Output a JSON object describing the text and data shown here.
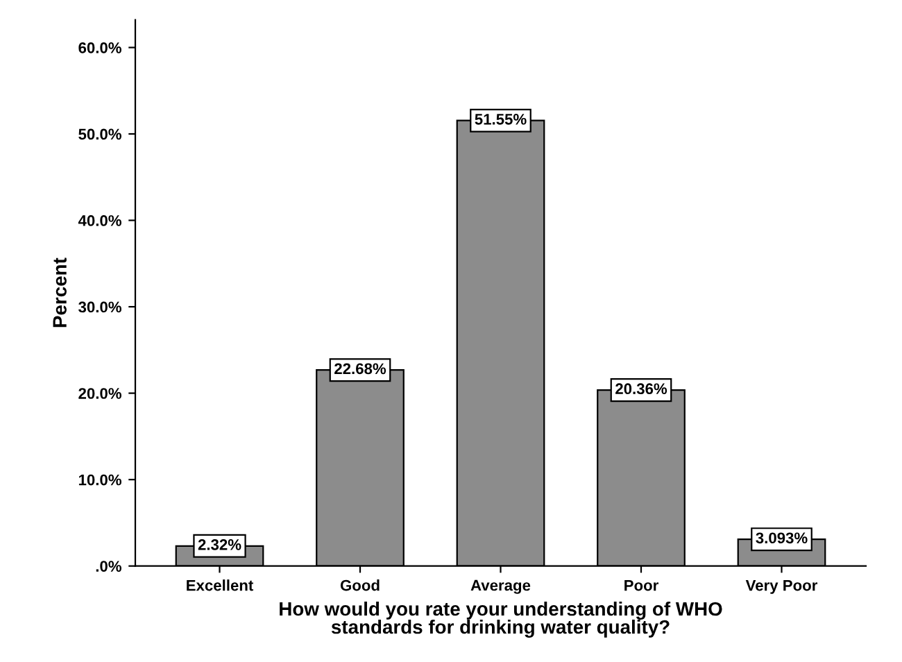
{
  "chart_data": {
    "type": "bar",
    "xlabel": "How would you rate your understanding of WHO\nstandards for drinking water quality?",
    "ylabel": "Percent",
    "categories": [
      "Excellent",
      "Good",
      "Average",
      "Poor",
      "Very Poor"
    ],
    "values": [
      2.32,
      22.68,
      51.55,
      20.36,
      3.093
    ],
    "value_labels": [
      "2.32%",
      "22.68%",
      "51.55%",
      "20.36%",
      "3.093%"
    ],
    "color": "#8c8c8c",
    "ylim": [
      0,
      63.2
    ],
    "yticks": [
      {
        "value": 0,
        "label": ".0%"
      },
      {
        "value": 10,
        "label": "10.0%"
      },
      {
        "value": 20,
        "label": "20.0%"
      },
      {
        "value": 30,
        "label": "30.0%"
      },
      {
        "value": 40,
        "label": "40.0%"
      },
      {
        "value": 50,
        "label": "50.0%"
      },
      {
        "value": 60,
        "label": "60.0%"
      }
    ],
    "grid": false,
    "legend": false
  }
}
